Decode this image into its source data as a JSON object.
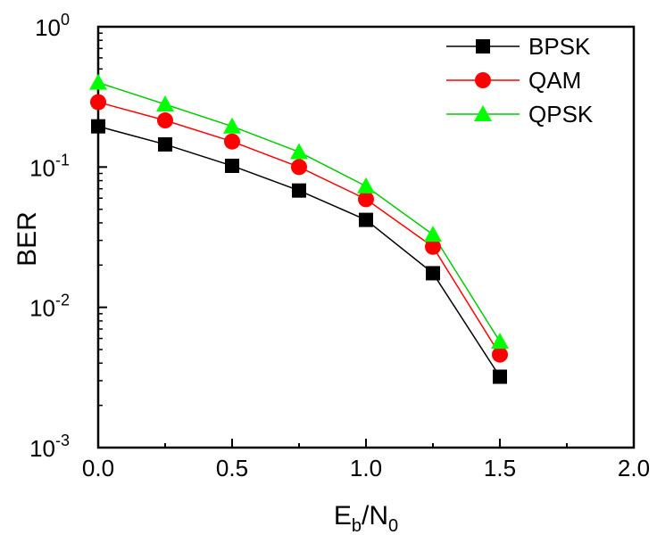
{
  "chart_data": {
    "type": "line",
    "xlabel": {
      "main": "E",
      "sub1": "b",
      "mid": "/N",
      "sub2": "0"
    },
    "ylabel": "BER",
    "xlim": [
      0,
      2
    ],
    "ylim": [
      0.001,
      1
    ],
    "yscale": "log",
    "xticks": [
      "0.0",
      "0.5",
      "1.0",
      "1.5",
      "2.0"
    ],
    "yticks": [
      {
        "value": 1,
        "base": "10",
        "exp": "0"
      },
      {
        "value": 0.1,
        "base": "10",
        "exp": "-1"
      },
      {
        "value": 0.01,
        "base": "10",
        "exp": "-2"
      },
      {
        "value": 0.001,
        "base": "10",
        "exp": "-3"
      }
    ],
    "grid": false,
    "legend_position": "top-right",
    "series": [
      {
        "name": "BPSK",
        "color": "#000000",
        "marker": "square",
        "line_color": "#000000",
        "x": [
          0,
          0.25,
          0.5,
          0.75,
          1.0,
          1.25,
          1.5
        ],
        "y": [
          0.195,
          0.145,
          0.102,
          0.068,
          0.042,
          0.0175,
          0.0032
        ]
      },
      {
        "name": "QAM",
        "color": "#ff0000",
        "marker": "circle",
        "line_color": "#ff0000",
        "x": [
          0,
          0.25,
          0.5,
          0.75,
          1.0,
          1.25,
          1.5
        ],
        "y": [
          0.29,
          0.215,
          0.152,
          0.1,
          0.059,
          0.027,
          0.0046
        ]
      },
      {
        "name": "QPSK",
        "color": "#00ff00",
        "marker": "triangle",
        "line_color": "#00cc00",
        "x": [
          0,
          0.25,
          0.5,
          0.75,
          1.0,
          1.25,
          1.5
        ],
        "y": [
          0.4,
          0.28,
          0.195,
          0.128,
          0.073,
          0.033,
          0.0057
        ]
      }
    ]
  }
}
